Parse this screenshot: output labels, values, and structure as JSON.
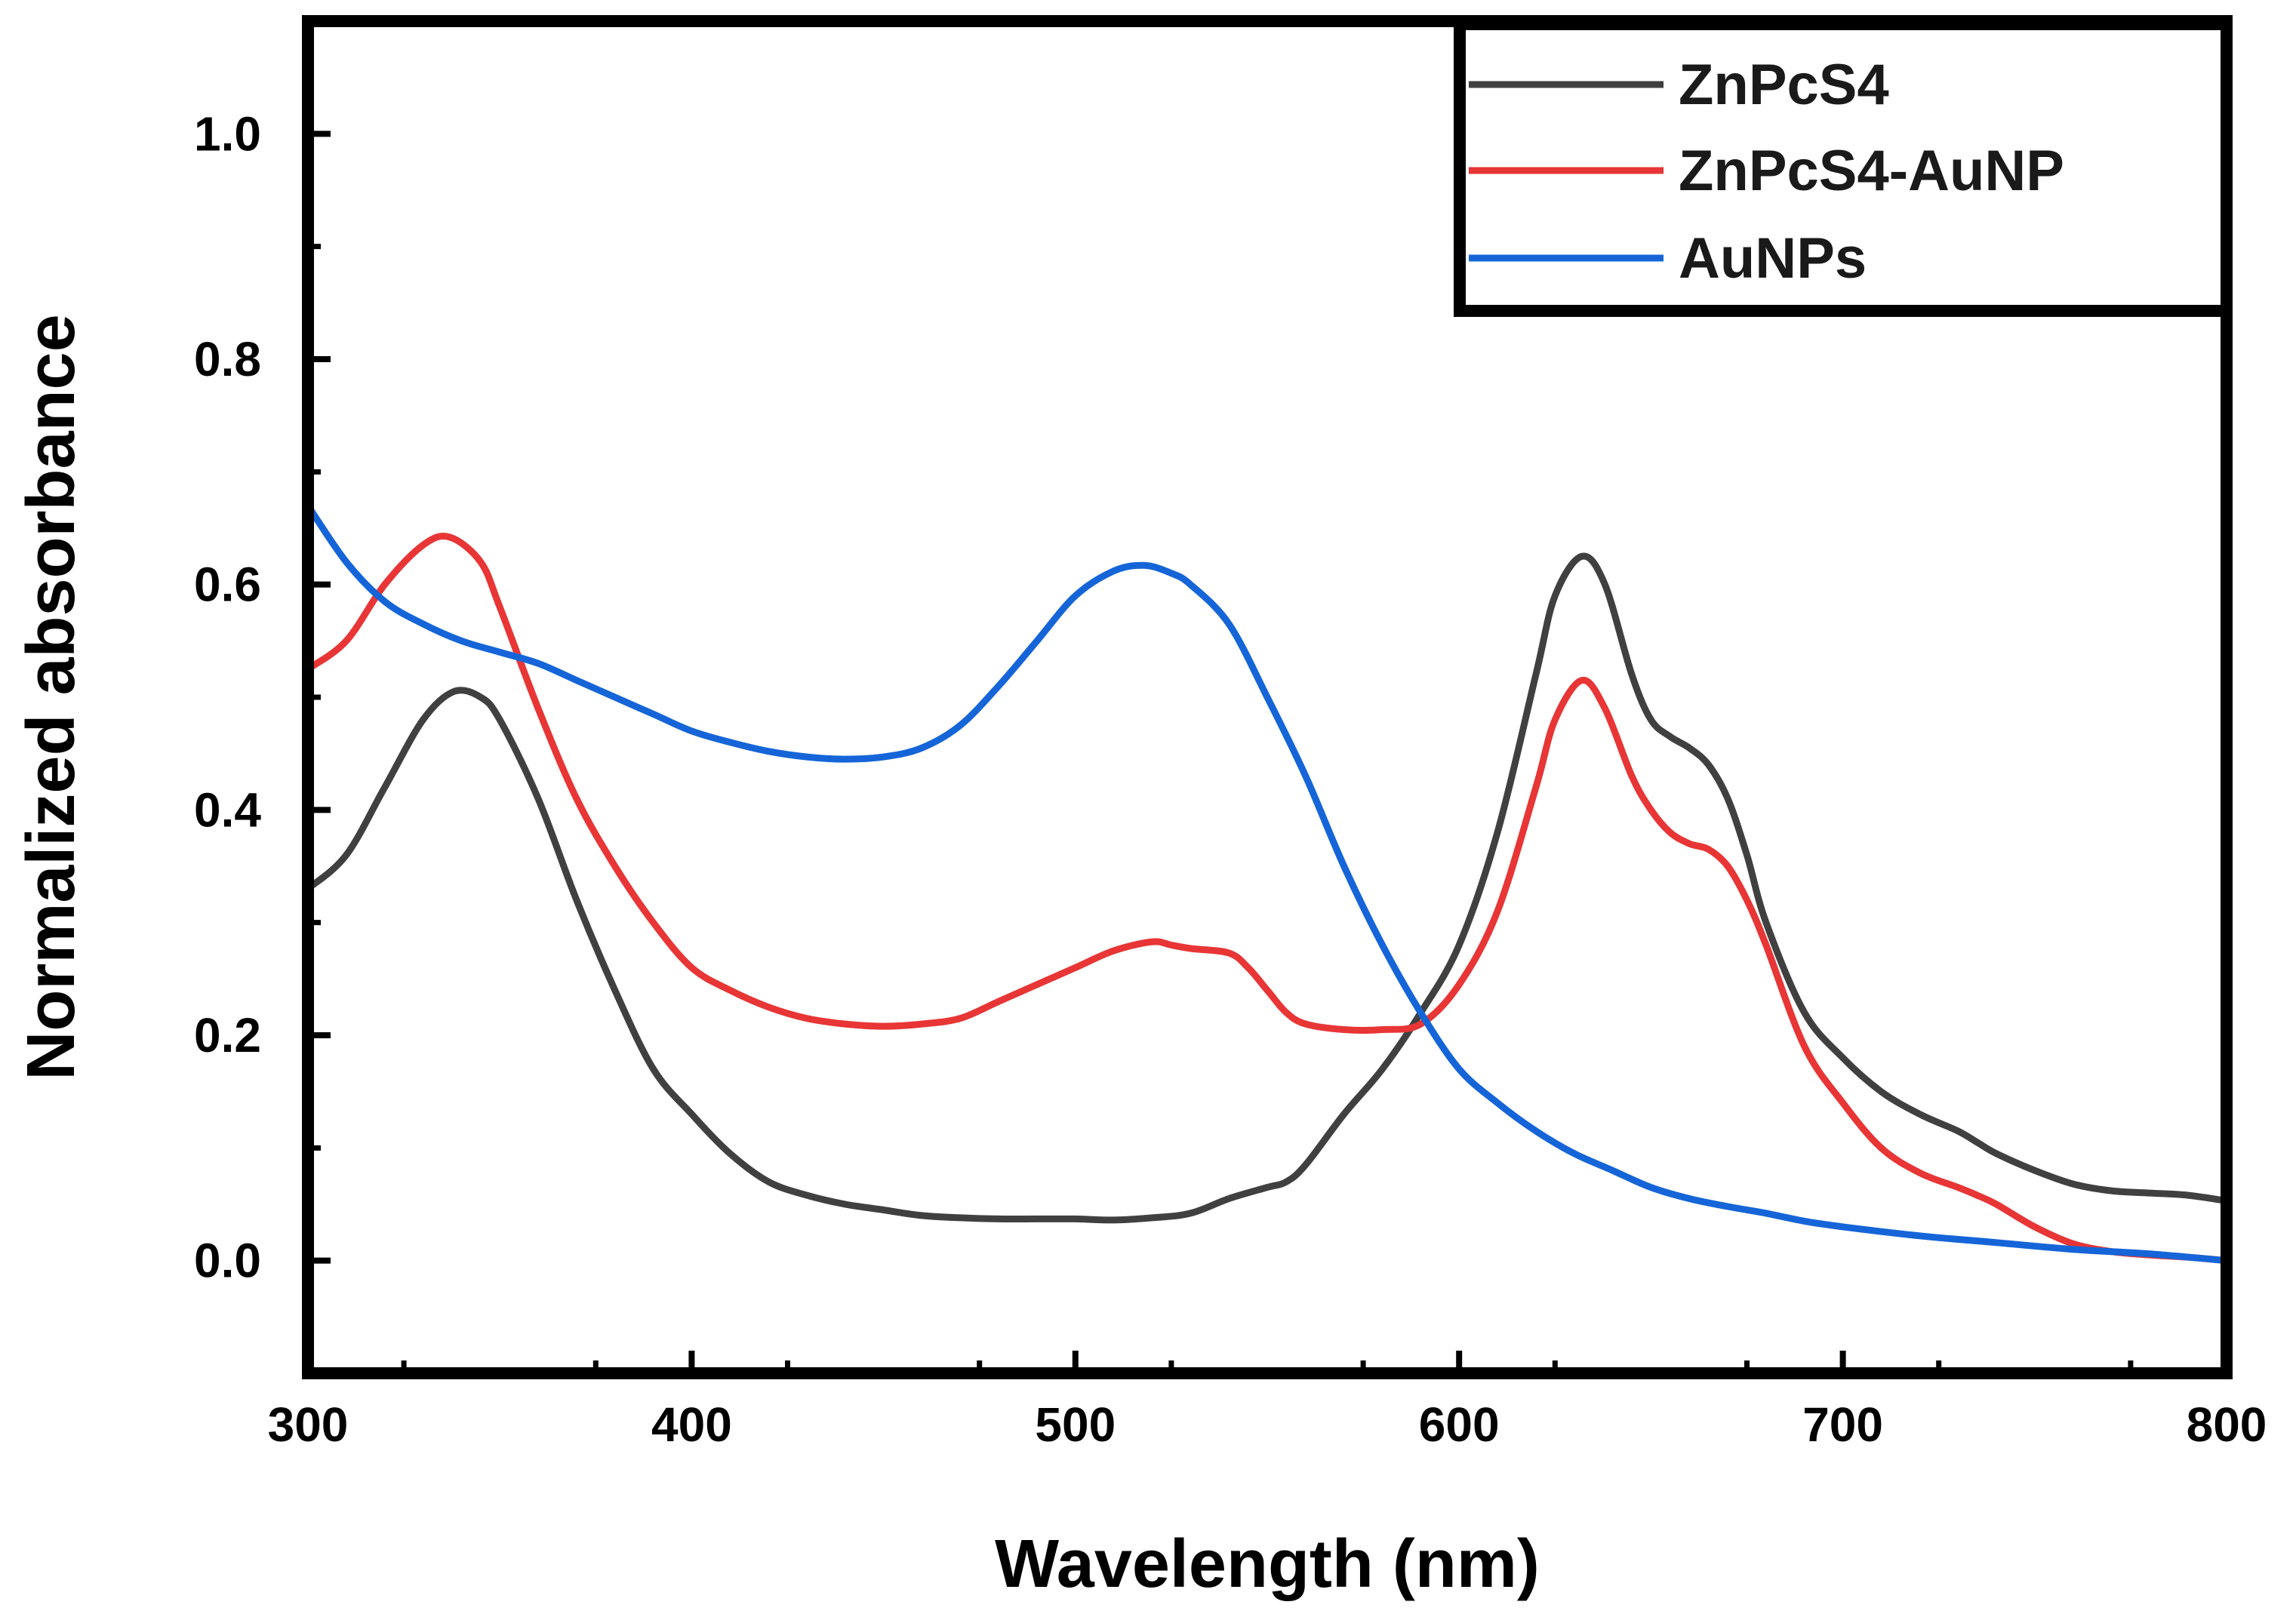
{
  "chart_data": {
    "type": "line",
    "title": "",
    "xlabel": "Wavelength (nm)",
    "ylabel": "Normalized absorbance",
    "xlim": [
      300,
      800
    ],
    "ylim": [
      -0.1,
      1.1
    ],
    "xticks": [
      300,
      400,
      500,
      600,
      700,
      800
    ],
    "xtick_labels": [
      "300",
      "400",
      "500",
      "600",
      "700",
      "800"
    ],
    "yticks": [
      0.0,
      0.2,
      0.4,
      0.6,
      0.8,
      1.0
    ],
    "ytick_labels": [
      "0.0",
      "0.2",
      "0.4",
      "0.6",
      "0.8",
      "1.0"
    ],
    "grid": false,
    "legend_position": "top-right",
    "series": [
      {
        "name": "ZnPcS4",
        "color": "#404040",
        "x": [
          300,
          310,
          320,
          330,
          338,
          345,
          350,
          360,
          370,
          380,
          390,
          400,
          410,
          420,
          430,
          440,
          450,
          460,
          470,
          480,
          490,
          500,
          510,
          520,
          530,
          540,
          550,
          555,
          560,
          570,
          580,
          590,
          600,
          610,
          620,
          625,
          632,
          638,
          645,
          650,
          655,
          660,
          665,
          670,
          675,
          680,
          690,
          700,
          710,
          720,
          730,
          735,
          740,
          750,
          760,
          770,
          780,
          790,
          800
        ],
        "values": [
          0.33,
          0.36,
          0.42,
          0.48,
          0.505,
          0.5,
          0.48,
          0.41,
          0.32,
          0.24,
          0.17,
          0.13,
          0.095,
          0.07,
          0.058,
          0.05,
          0.045,
          0.04,
          0.038,
          0.037,
          0.037,
          0.037,
          0.036,
          0.038,
          0.042,
          0.055,
          0.065,
          0.07,
          0.085,
          0.13,
          0.17,
          0.22,
          0.28,
          0.38,
          0.52,
          0.59,
          0.625,
          0.6,
          0.52,
          0.48,
          0.465,
          0.455,
          0.44,
          0.41,
          0.36,
          0.3,
          0.22,
          0.18,
          0.15,
          0.13,
          0.115,
          0.105,
          0.095,
          0.08,
          0.068,
          0.062,
          0.06,
          0.058,
          0.053
        ]
      },
      {
        "name": "ZnPcS4-AuNP",
        "color": "#e83535",
        "x": [
          300,
          310,
          320,
          330,
          337,
          345,
          350,
          360,
          370,
          380,
          390,
          400,
          410,
          420,
          430,
          440,
          450,
          460,
          470,
          480,
          490,
          500,
          510,
          520,
          525,
          530,
          540,
          545,
          550,
          555,
          560,
          570,
          580,
          590,
          600,
          610,
          620,
          625,
          632,
          638,
          645,
          650,
          655,
          660,
          665,
          670,
          675,
          680,
          690,
          700,
          710,
          720,
          730,
          735,
          740,
          750,
          760,
          770,
          780,
          790,
          800
        ],
        "values": [
          0.525,
          0.55,
          0.6,
          0.635,
          0.642,
          0.62,
          0.58,
          0.49,
          0.41,
          0.35,
          0.3,
          0.26,
          0.24,
          0.225,
          0.215,
          0.21,
          0.208,
          0.21,
          0.215,
          0.23,
          0.245,
          0.26,
          0.275,
          0.283,
          0.28,
          0.277,
          0.273,
          0.26,
          0.24,
          0.22,
          0.21,
          0.205,
          0.205,
          0.21,
          0.245,
          0.31,
          0.42,
          0.48,
          0.515,
          0.49,
          0.43,
          0.4,
          0.38,
          0.37,
          0.365,
          0.35,
          0.32,
          0.28,
          0.19,
          0.14,
          0.1,
          0.078,
          0.065,
          0.058,
          0.05,
          0.03,
          0.015,
          0.008,
          0.005,
          0.003,
          0.0
        ]
      },
      {
        "name": "AuNPs",
        "color": "#1565d8",
        "x": [
          300,
          310,
          320,
          330,
          340,
          350,
          360,
          370,
          380,
          390,
          400,
          410,
          420,
          430,
          440,
          450,
          460,
          470,
          480,
          490,
          500,
          510,
          518,
          525,
          530,
          540,
          550,
          560,
          570,
          580,
          590,
          600,
          610,
          620,
          630,
          640,
          650,
          660,
          670,
          680,
          690,
          700,
          720,
          740,
          760,
          780,
          800
        ],
        "values": [
          0.67,
          0.62,
          0.585,
          0.565,
          0.55,
          0.54,
          0.53,
          0.515,
          0.5,
          0.485,
          0.47,
          0.46,
          0.452,
          0.447,
          0.445,
          0.447,
          0.455,
          0.475,
          0.51,
          0.55,
          0.59,
          0.612,
          0.617,
          0.61,
          0.6,
          0.565,
          0.5,
          0.43,
          0.35,
          0.28,
          0.22,
          0.17,
          0.14,
          0.115,
          0.095,
          0.08,
          0.065,
          0.055,
          0.048,
          0.042,
          0.035,
          0.03,
          0.022,
          0.016,
          0.01,
          0.006,
          0.0
        ]
      }
    ]
  }
}
